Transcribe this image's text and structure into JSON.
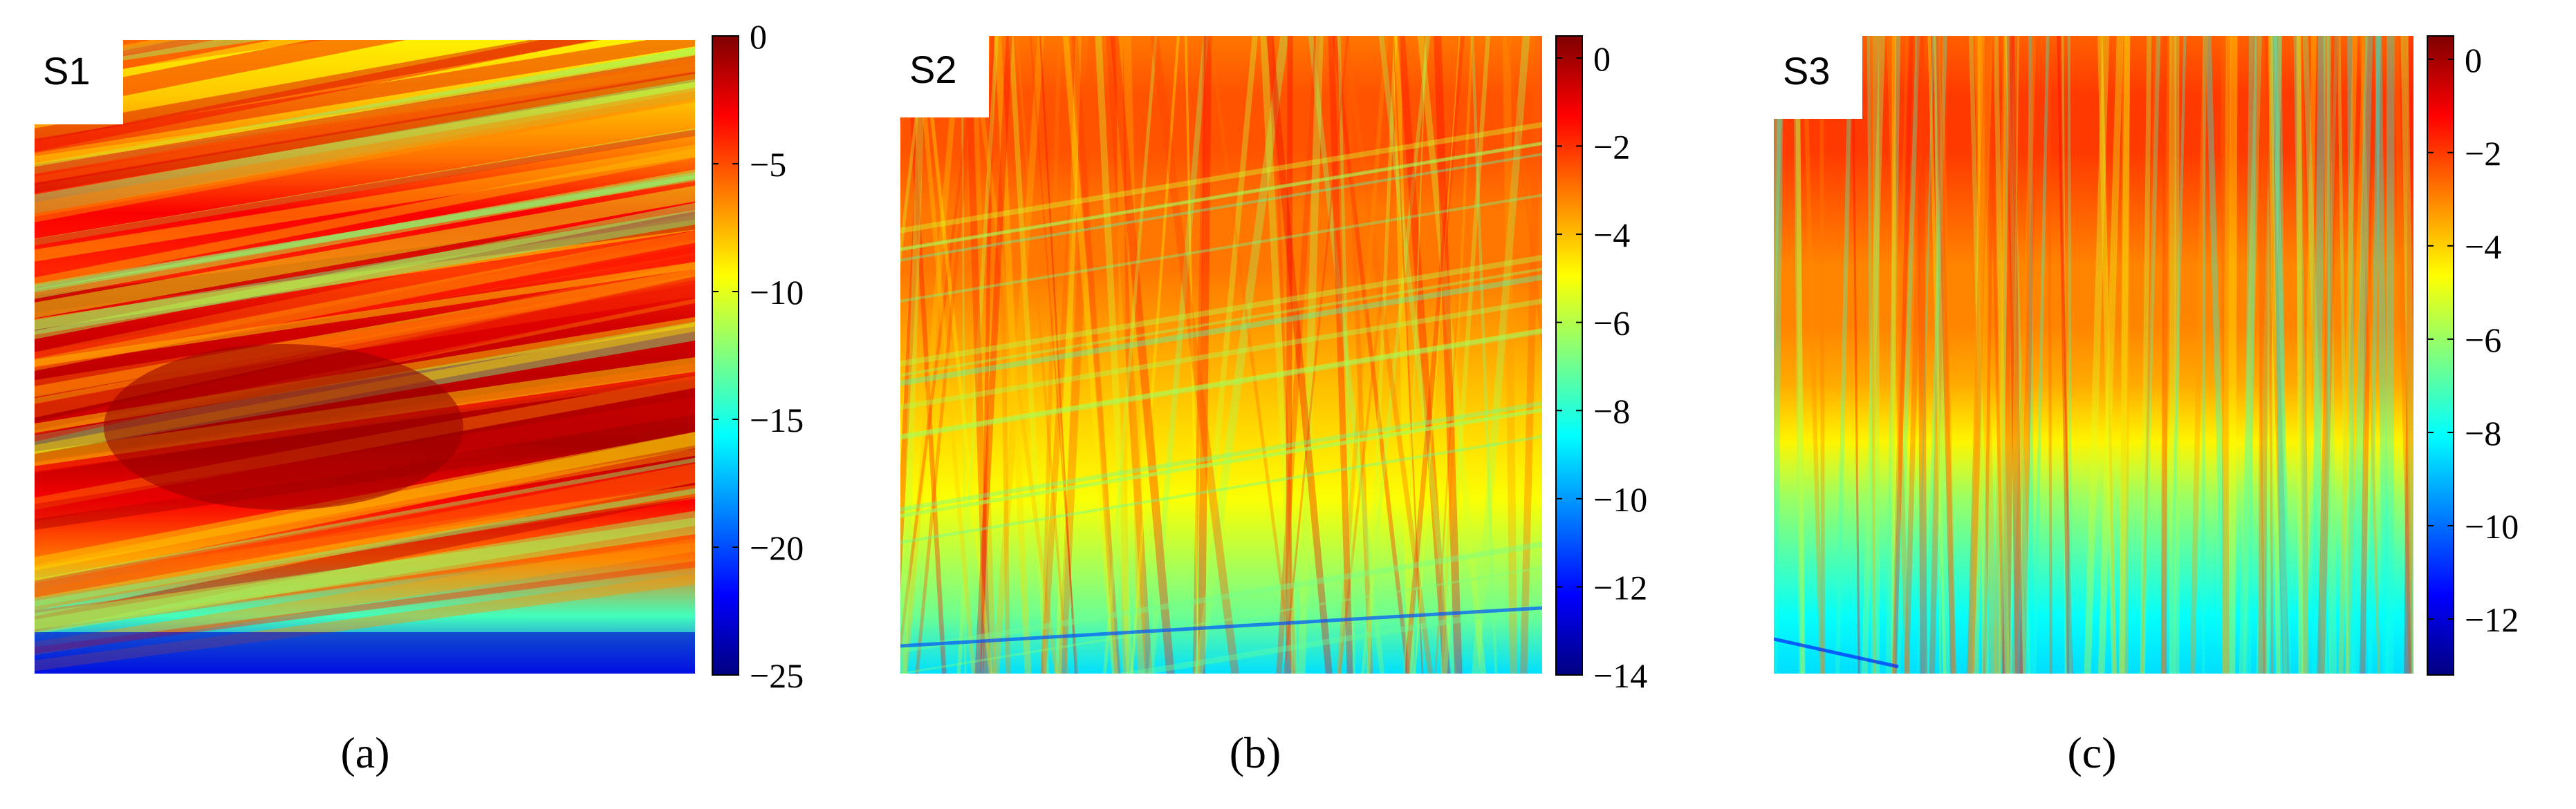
{
  "colors": {
    "jet": [
      "#00007f",
      "#0000ff",
      "#007fff",
      "#00ffff",
      "#7fff7f",
      "#ffff00",
      "#ff7f00",
      "#ff0000",
      "#7f0000"
    ]
  },
  "chart_data": [
    {
      "type": "heatmap",
      "panel_label": "S1",
      "caption": "(a)",
      "colorbar": {
        "min": -25,
        "max": 0,
        "ticks": [
          0,
          -5,
          -10,
          -15,
          -20,
          -25
        ],
        "tick_labels": [
          "0",
          "−5",
          "−10",
          "−15",
          "−20",
          "−25"
        ]
      },
      "description_of_field": {
        "top_band": -9,
        "middle_band": -3,
        "lower_center_hotspot": -1,
        "bottom_edge": -21
      }
    },
    {
      "type": "heatmap",
      "panel_label": "S2",
      "caption": "(b)",
      "colorbar": {
        "min": -14,
        "max": 0.5,
        "ticks": [
          0,
          -2,
          -4,
          -6,
          -8,
          -10,
          -12,
          -14
        ],
        "tick_labels": [
          "0",
          "−2",
          "−4",
          "−6",
          "−8",
          "−10",
          "−12",
          "−14"
        ]
      },
      "description_of_field": {
        "upper_region": -3,
        "lower_right": -6.5,
        "bottom_edge": -9
      }
    },
    {
      "type": "heatmap",
      "panel_label": "S3",
      "caption": "(c)",
      "colorbar": {
        "min": -13.2,
        "max": 0.5,
        "ticks": [
          0,
          -2,
          -4,
          -6,
          -8,
          -10,
          -12
        ],
        "tick_labels": [
          "0",
          "−2",
          "−4",
          "−6",
          "−8",
          "−10",
          "−12"
        ]
      },
      "description_of_field": {
        "upper_region": -3,
        "middle": -5,
        "bottom_edge": -8.5
      }
    }
  ]
}
